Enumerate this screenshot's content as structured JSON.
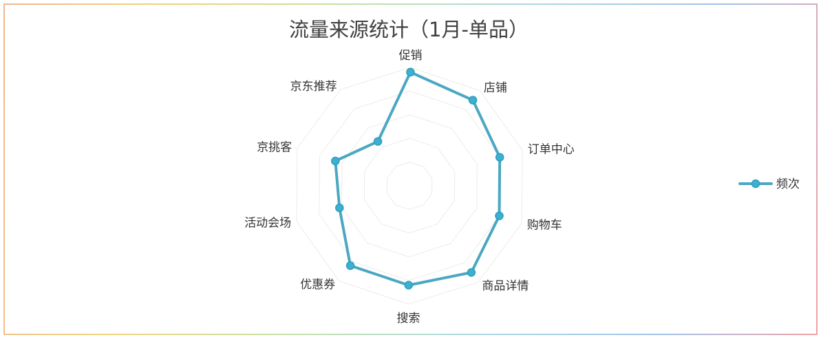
{
  "chart_data": {
    "type": "radar",
    "title": "流量来源统计（1月-单品）",
    "categories": [
      "促销",
      "店铺",
      "订单中心",
      "购物车",
      "商品详情",
      "搜索",
      "优惠券",
      "活动会场",
      "京挑客",
      "京东推荐"
    ],
    "series": [
      {
        "name": "频次",
        "values": [
          96,
          90,
          80,
          80,
          90,
          84,
          84,
          62,
          66,
          46
        ],
        "color": "#4ba7c2"
      }
    ],
    "rmax": 100,
    "rings": 5,
    "legend": "right",
    "grid": true
  }
}
